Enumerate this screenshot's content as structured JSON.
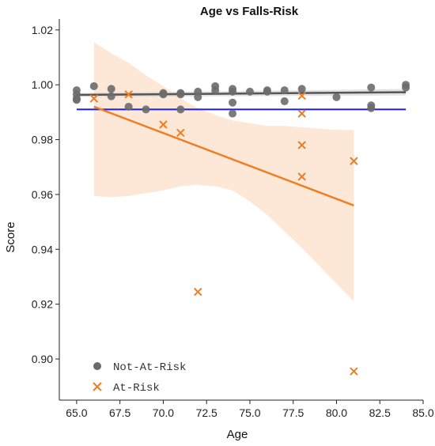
{
  "chart_data": {
    "type": "scatter",
    "title": "Age vs Falls-Risk",
    "xlabel": "Age",
    "ylabel": "Score",
    "xlim": [
      64.0,
      85.0
    ],
    "ylim": [
      0.885,
      1.024
    ],
    "xticks": [
      "65.0",
      "67.5",
      "70.0",
      "72.5",
      "75.0",
      "77.5",
      "80.0",
      "82.5",
      "85.0"
    ],
    "yticks": [
      "0.90",
      "0.92",
      "0.94",
      "0.96",
      "0.98",
      "1.00",
      "1.02"
    ],
    "legend": {
      "placement": "bottom-left"
    },
    "grid": false,
    "series": [
      {
        "name": "Not-At-Risk",
        "marker": "circle",
        "color": "#6b6b6b",
        "points": [
          [
            65,
            0.998
          ],
          [
            65,
            0.9965
          ],
          [
            65,
            0.995
          ],
          [
            65,
            0.9945
          ],
          [
            66,
            0.9995
          ],
          [
            67,
            0.9985
          ],
          [
            67,
            0.9958
          ],
          [
            68,
            0.992
          ],
          [
            69,
            0.991
          ],
          [
            70,
            0.997
          ],
          [
            70,
            0.9965
          ],
          [
            71,
            0.997
          ],
          [
            71,
            0.9965
          ],
          [
            71,
            0.991
          ],
          [
            72,
            0.9975
          ],
          [
            72,
            0.9955
          ],
          [
            73,
            0.9995
          ],
          [
            73,
            0.998
          ],
          [
            74,
            0.9985
          ],
          [
            74,
            0.9975
          ],
          [
            74,
            0.9935
          ],
          [
            74,
            0.9895
          ],
          [
            75,
            0.9975
          ],
          [
            76,
            0.998
          ],
          [
            76,
            0.9975
          ],
          [
            77,
            0.998
          ],
          [
            77,
            0.994
          ],
          [
            78,
            0.9985
          ],
          [
            80,
            0.9955
          ],
          [
            82,
            0.999
          ],
          [
            82,
            0.9925
          ],
          [
            82,
            0.9915
          ],
          [
            84,
            1.0
          ],
          [
            84,
            0.999
          ]
        ],
        "fit_line": {
          "x": [
            65,
            84
          ],
          "y": [
            0.9963,
            0.9973
          ]
        }
      },
      {
        "name": "At-Risk",
        "marker": "x",
        "color": "#ef7d22",
        "points": [
          [
            66,
            0.995
          ],
          [
            68,
            0.9965
          ],
          [
            70,
            0.9855
          ],
          [
            71,
            0.9825
          ],
          [
            72,
            0.9245
          ],
          [
            78,
            0.996
          ],
          [
            78,
            0.9895
          ],
          [
            78,
            0.978
          ],
          [
            78,
            0.9665
          ],
          [
            81,
            0.9722
          ],
          [
            81,
            0.8955
          ]
        ],
        "fit_line": {
          "x": [
            66,
            81
          ],
          "y": [
            0.992,
            0.956
          ]
        },
        "ci_band": {
          "x": [
            66,
            67,
            68,
            69,
            70,
            71,
            72,
            73,
            74,
            75,
            76,
            77,
            78,
            79,
            80,
            81
          ],
          "upper": [
            1.0155,
            1.0115,
            1.008,
            1.0035,
            0.9995,
            0.995,
            0.9915,
            0.989,
            0.987,
            0.986,
            0.985,
            0.985,
            0.9845,
            0.984,
            0.9835,
            0.9835
          ],
          "lower": [
            0.9595,
            0.959,
            0.9595,
            0.9605,
            0.9615,
            0.963,
            0.9635,
            0.963,
            0.9615,
            0.9575,
            0.9525,
            0.9465,
            0.9405,
            0.934,
            0.9275,
            0.921
          ]
        }
      }
    ],
    "reference_line": {
      "y": 0.991,
      "x_range": [
        65,
        84
      ],
      "color": "#1f1fd0"
    }
  }
}
